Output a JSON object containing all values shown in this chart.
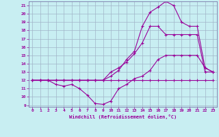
{
  "xlabel": "Windchill (Refroidissement éolien,°C)",
  "xlim": [
    -0.5,
    23.5
  ],
  "ylim": [
    8.8,
    21.5
  ],
  "xticks": [
    0,
    1,
    2,
    3,
    4,
    5,
    6,
    7,
    8,
    9,
    10,
    11,
    12,
    13,
    14,
    15,
    16,
    17,
    18,
    19,
    20,
    21,
    22,
    23
  ],
  "yticks": [
    9,
    10,
    11,
    12,
    13,
    14,
    15,
    16,
    17,
    18,
    19,
    20,
    21
  ],
  "bg_color": "#c8eef2",
  "grid_color": "#a0b4c8",
  "line_color": "#990099",
  "curves": [
    [
      12,
      12,
      12,
      12,
      12,
      12,
      12,
      12,
      12,
      12,
      12,
      12,
      12,
      12,
      12,
      12,
      12,
      12,
      12,
      12,
      12,
      12,
      12,
      12
    ],
    [
      12,
      12,
      12,
      11.5,
      11.3,
      11.5,
      11.0,
      10.2,
      9.2,
      9.1,
      9.5,
      11.0,
      11.5,
      12.2,
      12.5,
      13.2,
      14.5,
      15.0,
      15.0,
      15.0,
      15.0,
      15.0,
      13.5,
      13.0
    ],
    [
      12,
      12,
      12,
      12,
      12,
      12,
      12,
      12,
      12,
      12,
      13.0,
      13.5,
      14.2,
      15.2,
      16.5,
      18.5,
      18.5,
      17.5,
      17.5,
      17.5,
      17.5,
      17.5,
      13.0,
      13.0
    ],
    [
      12,
      12,
      12,
      12,
      12,
      12,
      12,
      12,
      12,
      12,
      12.5,
      13.2,
      14.5,
      15.5,
      18.5,
      20.2,
      20.8,
      21.5,
      21.0,
      19.0,
      18.5,
      18.5,
      13.5,
      13.0
    ]
  ]
}
